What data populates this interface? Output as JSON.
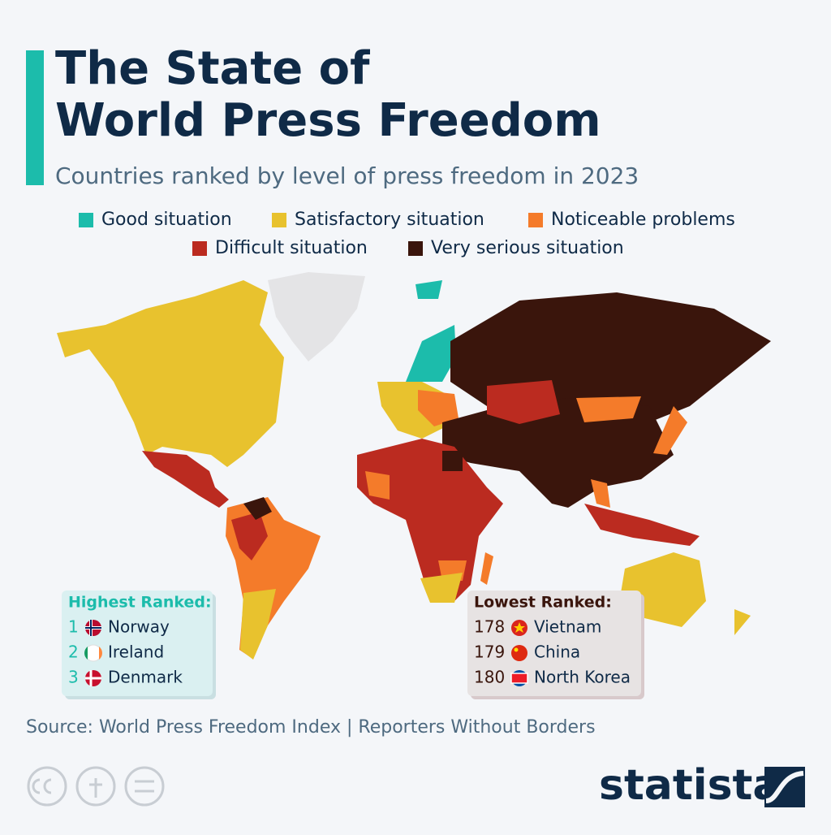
{
  "header": {
    "title_lines": [
      "The State of",
      "World Press Freedom"
    ],
    "subtitle": "Countries ranked by level of press freedom in 2023"
  },
  "legend": [
    {
      "label": "Good situation",
      "color": "#1cbcab"
    },
    {
      "label": "Satisfactory situation",
      "color": "#e8c22e"
    },
    {
      "label": "Noticeable problems",
      "color": "#f47b2a"
    },
    {
      "label": "Difficult situation",
      "color": "#bb2b20"
    },
    {
      "label": "Very serious situation",
      "color": "#3a150c"
    }
  ],
  "highest_ranked": {
    "heading": "Highest Ranked:",
    "rows": [
      {
        "rank": 1,
        "country": "Norway"
      },
      {
        "rank": 2,
        "country": "Ireland"
      },
      {
        "rank": 3,
        "country": "Denmark"
      }
    ]
  },
  "lowest_ranked": {
    "heading": "Lowest Ranked:",
    "rows": [
      {
        "rank": 178,
        "country": "Vietnam"
      },
      {
        "rank": 179,
        "country": "China"
      },
      {
        "rank": 180,
        "country": "North Korea"
      }
    ]
  },
  "source": "Source: World Press Freedom Index | Reporters Without Borders",
  "logo": "statista"
}
